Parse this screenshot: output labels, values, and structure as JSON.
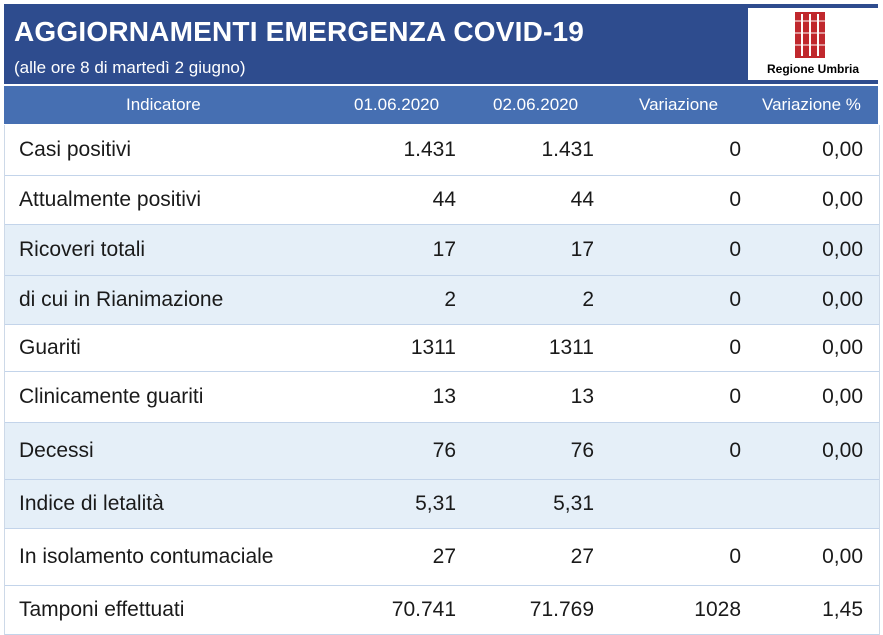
{
  "header": {
    "title": "AGGIORNAMENTI EMERGENZA COVID-19",
    "subtitle": "(alle ore 8 di martedì 2 giugno)",
    "logo_text": "Regione Umbria",
    "logo_icon": "regione-umbria-emblem"
  },
  "colors": {
    "header_bg": "#2e4c8e",
    "column_header_bg": "#466fb2",
    "row_alt_bg": "#e5eff8",
    "logo_red": "#c0282d"
  },
  "table": {
    "columns": [
      "Indicatore",
      "01.06.2020",
      "02.06.2020",
      "Variazione",
      "Variazione %"
    ],
    "rows": [
      {
        "label": "Casi positivi",
        "d1": "1.431",
        "d2": "1.431",
        "var": "0",
        "pct": "0,00",
        "alt": false
      },
      {
        "label": "Attualmente positivi",
        "d1": "44",
        "d2": "44",
        "var": "0",
        "pct": "0,00",
        "alt": false
      },
      {
        "label": "Ricoveri totali",
        "d1": "17",
        "d2": "17",
        "var": "0",
        "pct": "0,00",
        "alt": true
      },
      {
        "label": "di cui in Rianimazione",
        "d1": "2",
        "d2": "2",
        "var": "0",
        "pct": "0,00",
        "alt": true
      },
      {
        "label": "Guariti",
        "d1": "1311",
        "d2": "1311",
        "var": "0",
        "pct": "0,00",
        "alt": false
      },
      {
        "label": "Clinicamente guariti",
        "d1": "13",
        "d2": "13",
        "var": "0",
        "pct": "0,00",
        "alt": false
      },
      {
        "label": "Decessi",
        "d1": "76",
        "d2": "76",
        "var": "0",
        "pct": "0,00",
        "alt": true
      },
      {
        "label": "Indice di letalità",
        "d1": "5,31",
        "d2": "5,31",
        "var": "",
        "pct": "",
        "alt": true
      },
      {
        "label": "In isolamento contumaciale",
        "d1": "27",
        "d2": "27",
        "var": "0",
        "pct": "0,00",
        "alt": false
      },
      {
        "label": "Tamponi effettuati",
        "d1": "70.741",
        "d2": "71.769",
        "var": "1028",
        "pct": "1,45",
        "alt": false
      }
    ]
  }
}
